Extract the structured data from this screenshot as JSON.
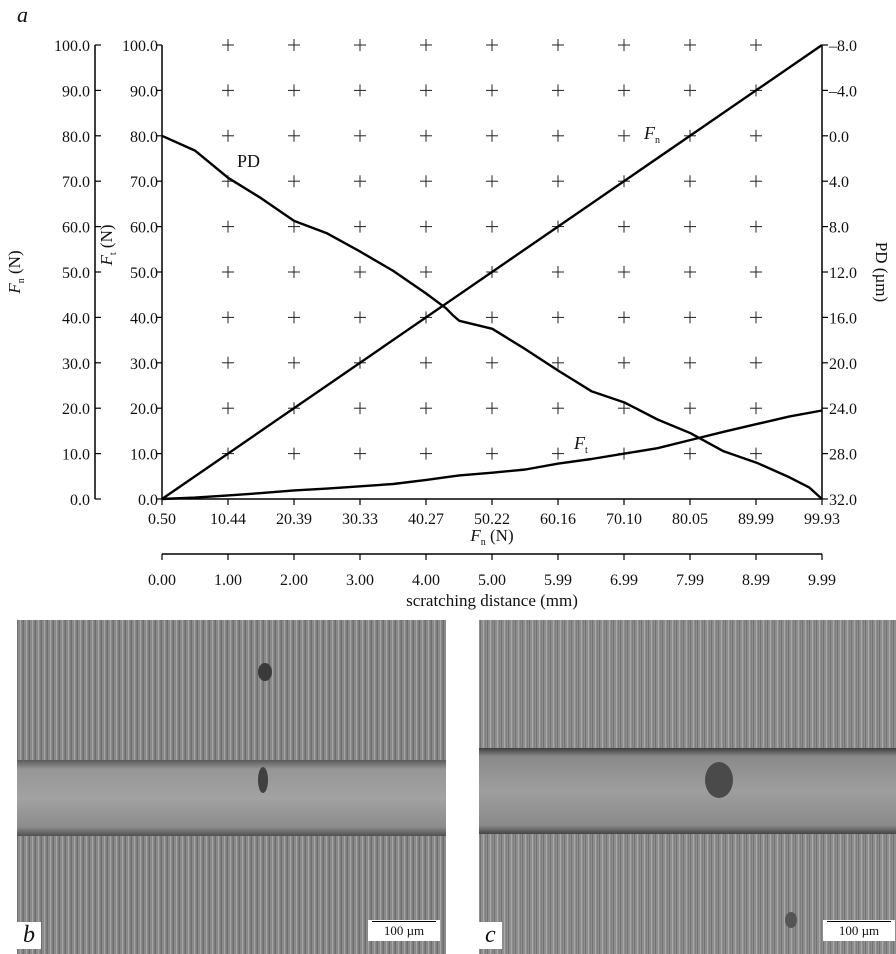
{
  "panel_a_label": "a",
  "panel_b_label": "b",
  "panel_c_label": "c",
  "scale_b": "100 µm",
  "scale_c": "100 µm",
  "chart_data": {
    "type": "line",
    "left_axis_outer": {
      "label": "F",
      "label_sub": "n",
      "label_unit": "(N)",
      "ticks": [
        "100.0",
        "90.0",
        "80.0",
        "70.0",
        "60.0",
        "50.0",
        "40.0",
        "30.0",
        "20.0",
        "10.0",
        "0.0"
      ],
      "ylim": [
        0,
        100
      ]
    },
    "left_axis_inner": {
      "label": "F",
      "label_sub": "t",
      "label_unit": "(N)",
      "ticks": [
        "100.0",
        "90.0",
        "80.0",
        "70.0",
        "60.0",
        "50.0",
        "40.0",
        "30.0",
        "20.0",
        "10.0",
        "0.0"
      ],
      "ylim": [
        0,
        100
      ]
    },
    "right_axis": {
      "label": "PD (µm)",
      "ticks": [
        "–8.0",
        "–4.0",
        "0.0",
        "4.0",
        "8.0",
        "12.0",
        "16.0",
        "20.0",
        "24.0",
        "28.0",
        "32.0"
      ],
      "ylim": [
        -8,
        32
      ]
    },
    "x_axis_top": {
      "label": "F",
      "label_sub": "n",
      "label_unit": "(N)",
      "ticks": [
        "0.50",
        "10.44",
        "20.39",
        "30.33",
        "40.27",
        "50.22",
        "60.16",
        "70.10",
        "80.05",
        "89.99",
        "99.93"
      ],
      "xlim": [
        0.5,
        99.93
      ]
    },
    "x_axis_bottom": {
      "label": "scratching distance (mm)",
      "ticks": [
        "0.00",
        "1.00",
        "2.00",
        "3.00",
        "4.00",
        "5.00",
        "5.99",
        "6.99",
        "7.99",
        "8.99",
        "9.99"
      ],
      "xlim": [
        0,
        9.99
      ]
    },
    "grid": "crosses",
    "series": [
      {
        "name": "F",
        "name_sub": "n",
        "axis": "left",
        "x": [
          0,
          9.99
        ],
        "y": [
          0,
          100
        ]
      },
      {
        "name": "F",
        "name_sub": "t",
        "axis": "left",
        "x": [
          0,
          0.5,
          1.0,
          1.5,
          2.0,
          2.5,
          3.0,
          3.5,
          4.0,
          4.3,
          4.5,
          5.0,
          5.5,
          6.0,
          6.5,
          7.0,
          7.5,
          8.0,
          8.5,
          9.0,
          9.5,
          9.99
        ],
        "y": [
          0,
          0.3,
          0.8,
          1.3,
          1.9,
          2.3,
          2.8,
          3.3,
          4.2,
          4.8,
          5.2,
          5.8,
          6.5,
          7.8,
          8.8,
          10.0,
          11.2,
          13.0,
          14.8,
          16.5,
          18.2,
          19.5
        ]
      },
      {
        "name": "PD",
        "axis": "right",
        "x": [
          0,
          0.5,
          1.0,
          1.5,
          2.0,
          2.5,
          3.0,
          3.5,
          4.0,
          4.3,
          4.4,
          4.5,
          5.0,
          5.5,
          6.0,
          6.5,
          7.0,
          7.5,
          8.0,
          8.5,
          9.0,
          9.5,
          9.8,
          9.99
        ],
        "y": [
          0.0,
          1.3,
          3.7,
          5.5,
          7.5,
          8.6,
          10.2,
          11.9,
          13.9,
          15.2,
          15.8,
          16.3,
          17.0,
          18.8,
          20.7,
          22.5,
          23.5,
          25.0,
          26.2,
          27.8,
          28.8,
          30.1,
          31.0,
          32.0
        ]
      }
    ]
  }
}
